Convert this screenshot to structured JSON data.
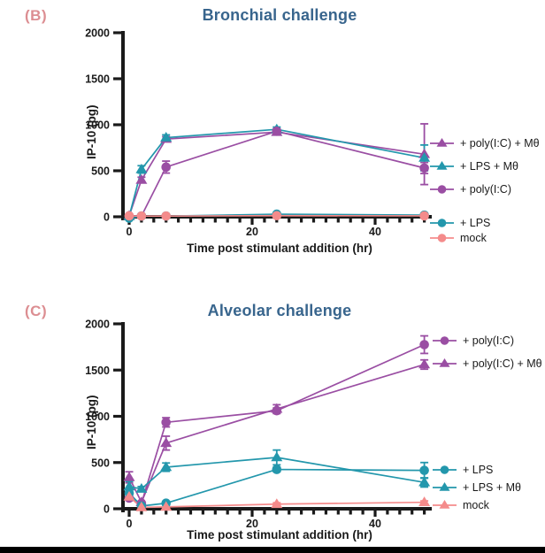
{
  "styles": {
    "title_color": "#38658D",
    "panel_label_color": "#DC8E92",
    "axis_color": "#1A1A1A",
    "purple": "#9A4EA3",
    "teal": "#2397AC",
    "salmon": "#F48B8B"
  },
  "chart_data": [
    {
      "type": "line",
      "panel_label": "(B)",
      "title": "Bronchial challenge",
      "xlabel": "Time post stimulant addition (hr)",
      "ylabel": "IP-10 (pg)",
      "xlim": [
        0,
        50
      ],
      "ylim": [
        0,
        2000
      ],
      "xticks": [
        0,
        20,
        40
      ],
      "yticks": [
        0,
        500,
        1000,
        1500,
        2000
      ],
      "minor_xtick_step": 2,
      "grid": false,
      "legend_position": "right",
      "x": [
        0,
        2,
        6,
        24,
        48
      ],
      "series": [
        {
          "name": "+ poly(I:C) + Mθ",
          "marker": "triangle",
          "color": "#9A4EA3",
          "values": [
            10,
            400,
            845,
            920,
            680
          ],
          "errors": [
            0,
            30,
            25,
            30,
            330
          ]
        },
        {
          "name": "+ LPS + Mθ",
          "marker": "triangle",
          "color": "#2397AC",
          "values": [
            5,
            515,
            860,
            950,
            640
          ],
          "errors": [
            0,
            40,
            30,
            25,
            140
          ]
        },
        {
          "name": "+ poly(I:C)",
          "marker": "circle",
          "color": "#9A4EA3",
          "values": [
            10,
            8,
            540,
            930,
            530
          ],
          "errors": [
            0,
            0,
            65,
            25,
            60
          ]
        },
        {
          "name": "+ LPS",
          "marker": "circle",
          "color": "#2397AC",
          "values": [
            -15,
            8,
            8,
            28,
            18
          ],
          "errors": [
            0,
            0,
            0,
            0,
            0
          ]
        },
        {
          "name": "mock",
          "marker": "circle",
          "color": "#F48B8B",
          "values": [
            10,
            8,
            8,
            12,
            10
          ],
          "errors": [
            0,
            0,
            0,
            0,
            0
          ]
        }
      ],
      "legend_groups": [
        [
          "+ poly(I:C) + Mθ",
          "+ LPS + Mθ",
          "+ poly(I:C)"
        ],
        [
          "+ LPS",
          "mock"
        ]
      ]
    },
    {
      "type": "line",
      "panel_label": "(C)",
      "title": "Alveolar challenge",
      "xlabel": "Time post stimulant addition (hr)",
      "ylabel": "IP-10 (pg)",
      "xlim": [
        0,
        50
      ],
      "ylim": [
        0,
        2000
      ],
      "xticks": [
        0,
        20,
        40
      ],
      "yticks": [
        0,
        500,
        1000,
        1500,
        2000
      ],
      "minor_xtick_step": 2,
      "grid": false,
      "legend_position": "right",
      "x": [
        0,
        2,
        6,
        24,
        48
      ],
      "series": [
        {
          "name": "+ poly(I:C)",
          "marker": "circle",
          "color": "#9A4EA3",
          "values": [
            115,
            60,
            935,
            1060,
            1775
          ],
          "errors": [
            25,
            0,
            50,
            30,
            95
          ]
        },
        {
          "name": "+ poly(I:C) + Mθ",
          "marker": "triangle",
          "color": "#9A4EA3",
          "values": [
            340,
            70,
            710,
            1080,
            1560
          ],
          "errors": [
            60,
            0,
            75,
            45,
            50
          ]
        },
        {
          "name": "+ LPS",
          "marker": "circle",
          "color": "#2397AC",
          "values": [
            170,
            30,
            60,
            425,
            415
          ],
          "errors": [
            30,
            0,
            20,
            25,
            85
          ]
        },
        {
          "name": "+ LPS + Mθ",
          "marker": "triangle",
          "color": "#2397AC",
          "values": [
            240,
            215,
            450,
            555,
            285
          ],
          "errors": [
            55,
            25,
            45,
            80,
            50
          ]
        },
        {
          "name": "mock",
          "marker": "triangle",
          "color": "#F48B8B",
          "values": [
            130,
            15,
            20,
            50,
            70
          ],
          "errors": [
            25,
            0,
            0,
            15,
            15
          ]
        }
      ],
      "legend_groups": [
        [
          "+ poly(I:C)",
          "+ poly(I:C) + Mθ"
        ],
        [
          "+ LPS",
          "+ LPS + Mθ",
          "mock"
        ]
      ]
    }
  ]
}
